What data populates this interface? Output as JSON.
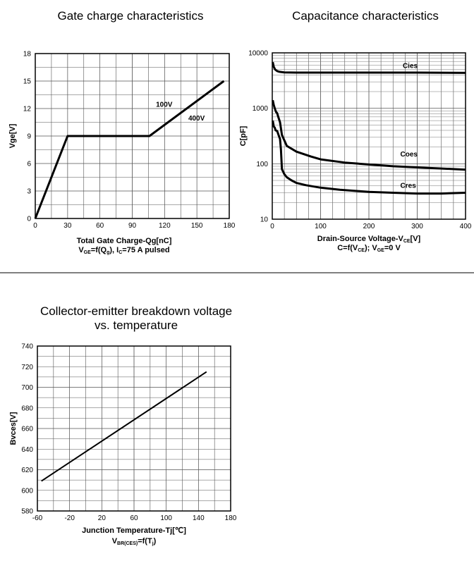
{
  "chart_data": [
    {
      "type": "line",
      "title": "Gate charge characteristics",
      "xlabel": "Total Gate Charge-Qg[nC]",
      "ylabel": "Vge[V]",
      "caption": {
        "main": "V",
        "sub1": "GE",
        "mid1": "=f(Q",
        "sub2": "g",
        "mid2": "), I",
        "sub3": "C",
        "tail": "=75 A  pulsed"
      },
      "xlim": [
        0,
        180
      ],
      "ylim": [
        0,
        18
      ],
      "xticks": [
        0,
        30,
        60,
        90,
        120,
        150,
        180
      ],
      "yticks": [
        0,
        3,
        6,
        9,
        12,
        15,
        18
      ],
      "grid": true,
      "series": [
        {
          "name": "Vge",
          "x": [
            0,
            30,
            106,
            175
          ],
          "y": [
            0,
            9,
            9,
            15
          ]
        }
      ],
      "annotations": [
        {
          "text": "100V",
          "x": 112,
          "y": 12.2
        },
        {
          "text": "400V",
          "x": 142,
          "y": 10.7
        }
      ]
    },
    {
      "type": "line",
      "title": "Capacitance characteristics",
      "xlabel": "Drain-Source Voltage-V",
      "xlabel_sub": "CE",
      "xlabel_tail": "[V]",
      "ylabel": "C[pF]",
      "caption": {
        "main": "C=f(V",
        "sub1": "CE",
        "mid1": "); V",
        "sub2": "GE",
        "tail": "=0 V"
      },
      "xlim": [
        0,
        400
      ],
      "ylim": [
        10,
        10000
      ],
      "yscale": "log",
      "xticks": [
        0,
        100,
        200,
        300,
        400
      ],
      "yticks": [
        10,
        100,
        1000,
        10000
      ],
      "grid": true,
      "series": [
        {
          "name": "Cies",
          "x": [
            1,
            3,
            6,
            10,
            15,
            25,
            50,
            100,
            200,
            300,
            400
          ],
          "y": [
            6800,
            5600,
            5000,
            4700,
            4550,
            4450,
            4400,
            4400,
            4400,
            4400,
            4350
          ]
        },
        {
          "name": "Coes",
          "x": [
            1,
            3,
            6,
            8,
            10,
            12,
            16,
            20,
            30,
            50,
            80,
            100,
            150,
            200,
            250,
            300,
            350,
            400
          ],
          "y": [
            1400,
            1150,
            950,
            850,
            820,
            720,
            560,
            330,
            210,
            165,
            135,
            120,
            105,
            97,
            90,
            86,
            82,
            78
          ]
        },
        {
          "name": "Cres",
          "x": [
            1,
            3,
            5,
            7,
            10,
            13,
            16,
            18,
            20,
            25,
            30,
            40,
            50,
            70,
            100,
            140,
            200,
            250,
            300,
            350,
            400
          ],
          "y": [
            600,
            470,
            450,
            400,
            390,
            330,
            280,
            180,
            80,
            65,
            57,
            50,
            45,
            41,
            37,
            34,
            31,
            30,
            29,
            29,
            30
          ]
        }
      ],
      "annotations": [
        {
          "text": "Cies",
          "x": 270,
          "y": 5300
        },
        {
          "text": "Coes",
          "x": 265,
          "y": 135
        },
        {
          "text": "Cres",
          "x": 265,
          "y": 37
        }
      ]
    },
    {
      "type": "line",
      "title": "Collector-emitter breakdown voltage",
      "title_line2": "vs. temperature",
      "xlabel": "Junction Temperature-Tj[℃]",
      "ylabel": "Bvces[V]",
      "caption": {
        "main": "V",
        "sub1": "BR(CES)",
        "mid1": "=f(T",
        "sub2": "j",
        "tail": ")"
      },
      "xlim": [
        -60,
        180
      ],
      "ylim": [
        580,
        740
      ],
      "xticks": [
        -60,
        -20,
        20,
        60,
        100,
        140,
        180
      ],
      "yticks": [
        580,
        600,
        620,
        640,
        660,
        680,
        700,
        720,
        740
      ],
      "grid": true,
      "series": [
        {
          "name": "Bvces",
          "x": [
            -55,
            150
          ],
          "y": [
            609,
            715
          ]
        }
      ]
    }
  ]
}
